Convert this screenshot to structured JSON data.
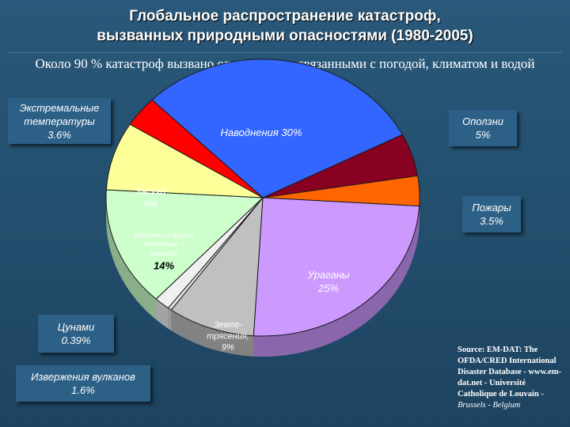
{
  "title_line1": "Глобальное распространение катастроф,",
  "title_line2": "вызванных природными опасностями   (1980-2005)",
  "subtitle": "Около 90 % катастроф вызвано опасностями, связанными с погодой, климатом и водой",
  "source_bold": "Source: EM-DAT: The OFDA/CRED International Disaster Database - www.em-dat.net - Université Catholique de Louvain -",
  "source_city": "Brussels - Belgium",
  "callouts": {
    "extreme_temp": [
      "Экстремальные",
      "температуры",
      "3.6%"
    ],
    "landslides": [
      "Оползни",
      "5%"
    ],
    "fires": [
      "Пожары",
      "3.5%"
    ],
    "tsunami": [
      "Цунами",
      "0.39%"
    ],
    "volcano": [
      "Извержения вулканов",
      "1.6%"
    ]
  },
  "colors": {
    "floods": "#3366ff",
    "landslides": "#880022",
    "fires": "#ff6600",
    "hurricanes": "#cc99ff",
    "earthquakes": "#c0c0c0",
    "tsunami": "#e0e0e0",
    "volcano": "#f0f0f0",
    "other": "#ccffcc",
    "drought": "#ffff99",
    "extreme_temp": "#ff0000"
  },
  "chart_data": {
    "type": "pie",
    "slices": [
      {
        "key": "floods",
        "name": "Наводнения",
        "value": 30,
        "label_lines": [
          "Наводнения 30%"
        ]
      },
      {
        "key": "landslides",
        "name": "Оползни",
        "value": 5,
        "label_lines": []
      },
      {
        "key": "fires",
        "name": "Пожары",
        "value": 3.5,
        "label_lines": []
      },
      {
        "key": "hurricanes",
        "name": "Ураганы",
        "value": 25,
        "label_lines": [
          "Ураганы",
          "25%"
        ]
      },
      {
        "key": "earthquakes",
        "name": "Землетрясения",
        "value": 9,
        "label_lines": [
          "Земле-",
          "трясения,",
          "9%"
        ]
      },
      {
        "key": "tsunami",
        "name": "Цунами",
        "value": 0.39,
        "label_lines": []
      },
      {
        "key": "volcano",
        "name": "Извержения вулканов",
        "value": 1.6,
        "label_lines": []
      },
      {
        "key": "other",
        "name": "Штормы и другие опасности",
        "value": 14,
        "label_lines": [
          "Штормы и другие",
          "связанные с",
          "погодой",
          "14%"
        ]
      },
      {
        "key": "drought",
        "name": "Засуха",
        "value": 8,
        "label_lines": [
          "Засуха",
          "8%"
        ]
      },
      {
        "key": "extreme_temp",
        "name": "Экстремальные температуры",
        "value": 3.6,
        "label_lines": []
      }
    ]
  }
}
